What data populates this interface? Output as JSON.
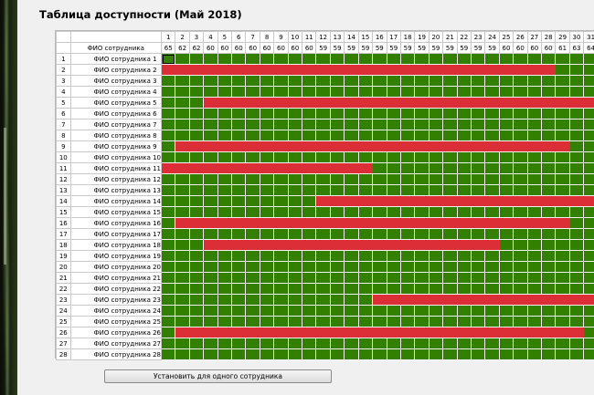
{
  "title": "Таблица доступности (Май 2018)",
  "header": {
    "name_column": "ФИО сотрудника",
    "days": [
      "1",
      "2",
      "3",
      "4",
      "5",
      "6",
      "7",
      "8",
      "9",
      "10",
      "11",
      "12",
      "13",
      "14",
      "15",
      "16",
      "17",
      "18",
      "19",
      "20",
      "21",
      "22",
      "23",
      "24",
      "25",
      "26",
      "27",
      "28",
      "29",
      "30",
      "31"
    ],
    "day_totals": [
      "65",
      "62",
      "62",
      "60",
      "60",
      "60",
      "60",
      "60",
      "60",
      "60",
      "60",
      "59",
      "59",
      "59",
      "59",
      "59",
      "59",
      "59",
      "59",
      "59",
      "59",
      "59",
      "59",
      "59",
      "60",
      "60",
      "60",
      "60",
      "61",
      "63",
      "64"
    ]
  },
  "rows": [
    {
      "num": "1",
      "name": "ФИО сотрудника 1"
    },
    {
      "num": "2",
      "name": "ФИО сотрудника 2"
    },
    {
      "num": "3",
      "name": "ФИО сотрудника 3"
    },
    {
      "num": "4",
      "name": "ФИО сотрудника 4"
    },
    {
      "num": "5",
      "name": "ФИО сотрудника 5"
    },
    {
      "num": "6",
      "name": "ФИО сотрудника 6"
    },
    {
      "num": "7",
      "name": "ФИО сотрудника 7"
    },
    {
      "num": "8",
      "name": "ФИО сотрудника 8"
    },
    {
      "num": "9",
      "name": "ФИО сотрудника 9"
    },
    {
      "num": "10",
      "name": "ФИО сотрудника 10"
    },
    {
      "num": "11",
      "name": "ФИО сотрудника 11"
    },
    {
      "num": "12",
      "name": "ФИО сотрудника 12"
    },
    {
      "num": "13",
      "name": "ФИО сотрудника 13"
    },
    {
      "num": "14",
      "name": "ФИО сотрудника 14"
    },
    {
      "num": "15",
      "name": "ФИО сотрудника 15"
    },
    {
      "num": "16",
      "name": "ФИО сотрудника 16"
    },
    {
      "num": "17",
      "name": "ФИО сотрудника 17"
    },
    {
      "num": "18",
      "name": "ФИО сотрудника 18"
    },
    {
      "num": "19",
      "name": "ФИО сотрудника 19"
    },
    {
      "num": "20",
      "name": "ФИО сотрудника 20"
    },
    {
      "num": "21",
      "name": "ФИО сотрудника 21"
    },
    {
      "num": "22",
      "name": "ФИО сотрудника 22"
    },
    {
      "num": "23",
      "name": "ФИО сотрудника 23"
    },
    {
      "num": "24",
      "name": "ФИО сотрудника 24"
    },
    {
      "num": "25",
      "name": "ФИО сотрудника 25"
    },
    {
      "num": "26",
      "name": "ФИО сотрудника 26"
    },
    {
      "num": "27",
      "name": "ФИО сотрудника 27"
    },
    {
      "num": "28",
      "name": "ФИО сотрудника 28"
    }
  ],
  "unavailable_ranges": [
    {
      "row": "2",
      "from_day": 1,
      "to_day": 28
    },
    {
      "row": "5",
      "from_day": 4,
      "to_day": 31
    },
    {
      "row": "9",
      "from_day": 2,
      "to_day": 29
    },
    {
      "row": "11",
      "from_day": 1,
      "to_day": 15
    },
    {
      "row": "14",
      "from_day": 12,
      "to_day": 31
    },
    {
      "row": "16",
      "from_day": 2,
      "to_day": 29
    },
    {
      "row": "18",
      "from_day": 4,
      "to_day": 24
    },
    {
      "row": "23",
      "from_day": 16,
      "to_day": 31
    },
    {
      "row": "26",
      "from_day": 2,
      "to_day": 30
    }
  ],
  "selected_cell": {
    "row": "1",
    "day": 1
  },
  "button_label": "Установить для одного сотрудника",
  "colors": {
    "available": "#338000",
    "unavailable": "#dc2e36"
  }
}
